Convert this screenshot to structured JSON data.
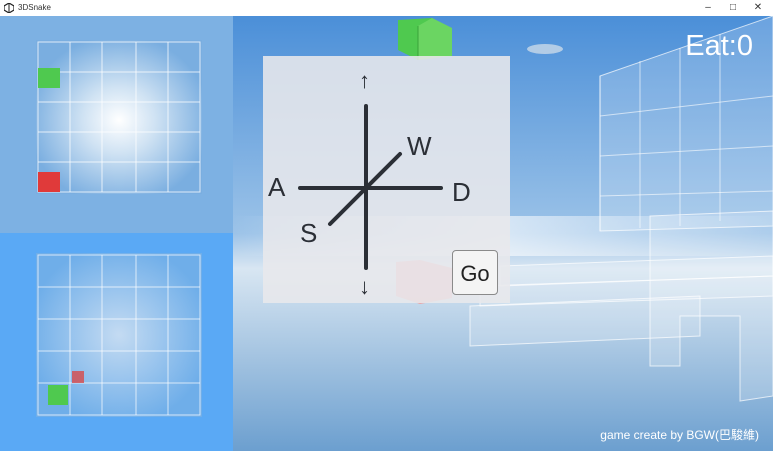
{
  "window": {
    "title": "3DSnake"
  },
  "hud": {
    "eat_label": "Eat:0",
    "credit": "game create by BGW(巴駿維)"
  },
  "controls": {
    "up": "↑",
    "down": "↓",
    "left": "A",
    "right": "D",
    "forward": "W",
    "back": "S",
    "go": "Go"
  },
  "colors": {
    "snake_head": "#4fc94f",
    "food": "#e03a3a",
    "sky": "#6aa8e0",
    "minimap_bottom": "#5aa9f5"
  },
  "icons": [
    "unity-icon",
    "minimize-icon",
    "maximize-icon",
    "close-icon"
  ]
}
